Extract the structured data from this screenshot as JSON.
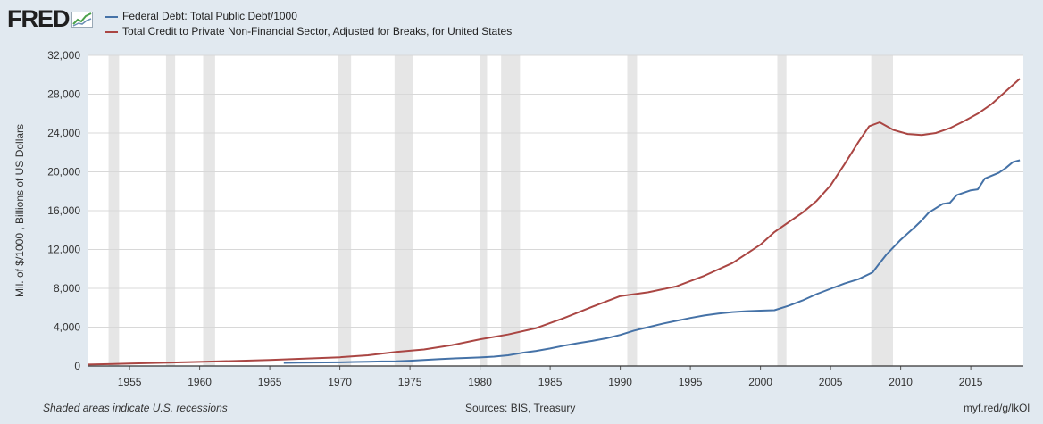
{
  "header": {
    "logo_text": "FRED"
  },
  "colors": {
    "background": "#e1e9f0",
    "plot_background": "#ffffff",
    "recession": "#e6e6e6",
    "series_1": "#4572a7",
    "series_2": "#aa4643"
  },
  "chart_data": {
    "type": "line",
    "title": "",
    "xlabel": "",
    "ylabel": "Mil. of $/1000 , Billions of US Dollars",
    "xlim": [
      1952,
      2018.75
    ],
    "ylim": [
      0,
      32000
    ],
    "grid": true,
    "legend_position": "top-left",
    "y_ticks": [
      0,
      4000,
      8000,
      12000,
      16000,
      20000,
      24000,
      28000,
      32000
    ],
    "y_tick_labels": [
      "0",
      "4,000",
      "8,000",
      "12,000",
      "16,000",
      "20,000",
      "24,000",
      "28,000",
      "32,000"
    ],
    "x_ticks": [
      1955,
      1960,
      1965,
      1970,
      1975,
      1980,
      1985,
      1990,
      1995,
      2000,
      2005,
      2010,
      2015
    ],
    "x_tick_labels": [
      "1955",
      "1960",
      "1965",
      "1970",
      "1975",
      "1980",
      "1985",
      "1990",
      "1995",
      "2000",
      "2005",
      "2010",
      "2015"
    ],
    "recessions": [
      [
        1953.5,
        1954.25
      ],
      [
        1957.6,
        1958.25
      ],
      [
        1960.25,
        1961.1
      ],
      [
        1969.9,
        1970.8
      ],
      [
        1973.9,
        1975.2
      ],
      [
        1980.0,
        1980.5
      ],
      [
        1981.5,
        1982.85
      ],
      [
        1990.5,
        1991.2
      ],
      [
        2001.2,
        2001.85
      ],
      [
        2007.9,
        2009.45
      ]
    ],
    "series": [
      {
        "name": "Federal Debt: Total Public Debt/1000",
        "x": [
          1966,
          1967,
          1968,
          1969,
          1970,
          1971,
          1972,
          1973,
          1974,
          1975,
          1976,
          1977,
          1978,
          1979,
          1980,
          1981,
          1982,
          1983,
          1984,
          1985,
          1986,
          1987,
          1988,
          1989,
          1990,
          1991,
          1992,
          1993,
          1994,
          1995,
          1996,
          1997,
          1998,
          1999,
          2000,
          2001,
          2002,
          2003,
          2004,
          2005,
          2006,
          2007,
          2008,
          2008.5,
          2009,
          2010,
          2011,
          2011.5,
          2012,
          2013,
          2013.5,
          2014,
          2015,
          2015.5,
          2016,
          2016.5,
          2017,
          2017.5,
          2018,
          2018.5
        ],
        "values": [
          320,
          340,
          360,
          370,
          380,
          410,
          440,
          470,
          490,
          540,
          620,
          700,
          770,
          830,
          880,
          970,
          1100,
          1350,
          1550,
          1800,
          2100,
          2350,
          2580,
          2850,
          3200,
          3650,
          4000,
          4350,
          4650,
          4950,
          5200,
          5400,
          5550,
          5650,
          5700,
          5750,
          6200,
          6750,
          7400,
          7950,
          8500,
          8950,
          9650,
          10600,
          11500,
          13000,
          14300,
          15000,
          15800,
          16700,
          16800,
          17600,
          18100,
          18200,
          19300,
          19600,
          19900,
          20400,
          21000,
          21200
        ],
        "color": "#4572a7"
      },
      {
        "name": "Total Credit to Private Non-Financial Sector, Adjusted for Breaks, for United States",
        "x": [
          1952,
          1955,
          1960,
          1965,
          1970,
          1972,
          1974,
          1976,
          1978,
          1980,
          1982,
          1984,
          1986,
          1988,
          1990,
          1992,
          1994,
          1996,
          1998,
          2000,
          2001,
          2002,
          2003,
          2004,
          2005,
          2006,
          2007,
          2007.75,
          2008.5,
          2009.5,
          2010.5,
          2011.5,
          2012.5,
          2013.5,
          2014.5,
          2015.5,
          2016.5,
          2017.5,
          2018.5
        ],
        "values": [
          150,
          250,
          420,
          620,
          900,
          1100,
          1450,
          1700,
          2150,
          2750,
          3250,
          3900,
          4950,
          6100,
          7200,
          7600,
          8200,
          9300,
          10600,
          12500,
          13800,
          14800,
          15800,
          17000,
          18600,
          20800,
          23100,
          24700,
          25100,
          24300,
          23900,
          23800,
          24000,
          24500,
          25200,
          26000,
          27000,
          28300,
          29600
        ],
        "color": "#aa4643"
      }
    ]
  },
  "footer": {
    "note": "Shaded areas indicate U.S. recessions",
    "sources": "Sources: BIS, Treasury",
    "link": "myf.red/g/lkOl"
  }
}
